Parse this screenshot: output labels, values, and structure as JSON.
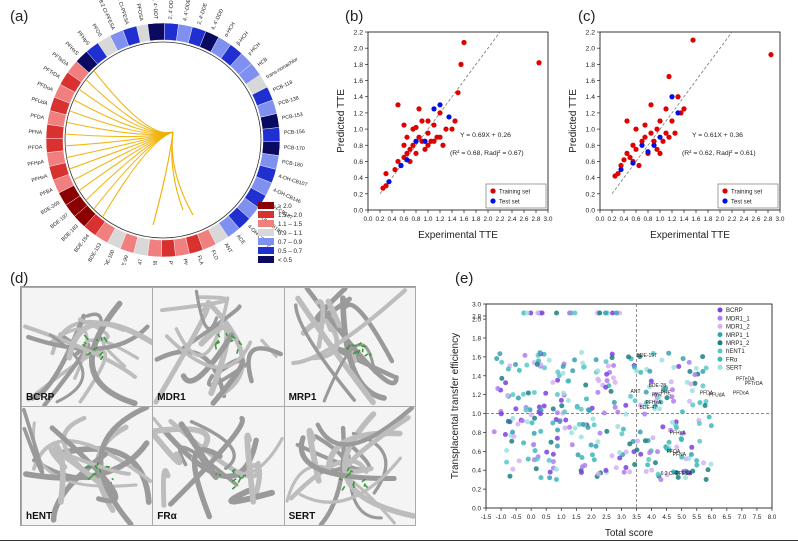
{
  "panels": {
    "a": "(a)",
    "b": "(b)",
    "c": "(c)",
    "d": "(d)",
    "e": "(e)"
  },
  "circle": {
    "labels": [
      "PFOSA",
      "6:2 Cl-PFESA",
      "8:2 Cl-PFESA",
      "PFOS",
      "PFHpS",
      "PFHxS",
      "PFTeDA",
      "PFTrDA",
      "PFDoA",
      "PFUdA",
      "PFDA",
      "PFNA",
      "PFOA",
      "PFHpA",
      "PFHxA",
      "PFBA",
      "BDE-209",
      "BDE-197",
      "BDE-183",
      "BDE-154",
      "BDE-153",
      "BDE-100",
      "BDE-99",
      "BDE-47",
      "BDE-28",
      "PYR",
      "PHE",
      "FLA",
      "FLO",
      "ANT",
      "ACE",
      "4-OH-CB172",
      "3-OH-CB187",
      "4-OH-CB187",
      "4-OH-CB146",
      "4-OH-CB107",
      "PCB-180",
      "PCB-170",
      "PCB-156",
      "PCB-153",
      "PCB-138",
      "PCB-118",
      "trans-nonachlor",
      "HCB",
      "γ-HCH",
      "β-HCH",
      "α-HCH",
      "4, 4'-DDD",
      "2, 4'-DDE",
      "4, 4'-DDE",
      "2, 4'-DDT",
      "4, 4'-DDT"
    ],
    "legend": [
      "≥ 2.0",
      "1.5 – 2.0",
      "1.1 – 1.5",
      "0.9 – 1.1",
      "0.7 – 0.9",
      "0.5 – 0.7",
      "< 0.5"
    ],
    "legend_colors": [
      "#8b0000",
      "#d93030",
      "#f08080",
      "#d8d8d8",
      "#8090f0",
      "#2030d0",
      "#0a0a60"
    ]
  },
  "chart_data": [
    {
      "type": "scatter",
      "panel": "b",
      "xlabel": "Experimental TTE",
      "ylabel": "Predicted TTE",
      "xlim": [
        0.0,
        3.0
      ],
      "ylim": [
        0.0,
        2.2
      ],
      "xticks": [
        "0.0",
        "0.2",
        "0.4",
        "0.6",
        "0.8",
        "1.0",
        "1.2",
        "1.4",
        "1.6",
        "1.8",
        "2.0",
        "2.2",
        "2.4",
        "2.6",
        "2.8",
        "3.0"
      ],
      "yticks": [
        "0.0",
        "0.2",
        "0.4",
        "0.6",
        "0.8",
        "1.0",
        "1.2",
        "1.4",
        "1.6",
        "1.8",
        "2.0",
        "2.2"
      ],
      "equation": "Y = 0.69X + 0.26",
      "stats": "(R² = 0.68, Radj² = 0.67)",
      "legend": [
        "Training set",
        "Test set"
      ],
      "training": [
        [
          0.25,
          0.27
        ],
        [
          0.3,
          0.3
        ],
        [
          0.3,
          0.45
        ],
        [
          0.45,
          0.5
        ],
        [
          0.5,
          0.6
        ],
        [
          0.55,
          0.55
        ],
        [
          0.6,
          0.8
        ],
        [
          0.6,
          0.65
        ],
        [
          0.65,
          0.7
        ],
        [
          0.7,
          0.75
        ],
        [
          0.7,
          0.6
        ],
        [
          0.75,
          0.8
        ],
        [
          0.8,
          0.7
        ],
        [
          0.85,
          0.9
        ],
        [
          0.9,
          0.85
        ],
        [
          0.95,
          0.75
        ],
        [
          1.0,
          0.8
        ],
        [
          1.0,
          0.95
        ],
        [
          1.05,
          0.85
        ],
        [
          1.1,
          0.85
        ],
        [
          1.15,
          0.9
        ],
        [
          1.2,
          0.9
        ],
        [
          1.25,
          0.8
        ],
        [
          0.5,
          1.3
        ],
        [
          0.6,
          1.05
        ],
        [
          0.75,
          1.0
        ],
        [
          0.85,
          1.25
        ],
        [
          0.9,
          1.1
        ],
        [
          1.0,
          1.1
        ],
        [
          1.1,
          1.05
        ],
        [
          1.2,
          1.2
        ],
        [
          1.3,
          1.0
        ],
        [
          1.4,
          1.0
        ],
        [
          1.5,
          1.45
        ],
        [
          1.55,
          1.8
        ],
        [
          1.6,
          2.07
        ],
        [
          2.85,
          1.82
        ],
        [
          1.45,
          1.1
        ],
        [
          0.65,
          0.9
        ],
        [
          0.8,
          1.02
        ]
      ],
      "test": [
        [
          0.35,
          0.35
        ],
        [
          0.55,
          0.55
        ],
        [
          0.65,
          0.62
        ],
        [
          0.8,
          0.85
        ],
        [
          0.95,
          0.85
        ],
        [
          1.1,
          1.25
        ],
        [
          1.2,
          1.3
        ],
        [
          1.35,
          1.15
        ]
      ]
    },
    {
      "type": "scatter",
      "panel": "c",
      "xlabel": "Experimental TTE",
      "ylabel": "Predicted TTE",
      "xlim": [
        0.0,
        3.0
      ],
      "ylim": [
        0.0,
        2.2
      ],
      "xticks": [
        "0.0",
        "0.2",
        "0.4",
        "0.6",
        "0.8",
        "1.0",
        "1.2",
        "1.4",
        "1.6",
        "1.8",
        "2.0",
        "2.2",
        "2.4",
        "2.6",
        "2.8",
        "3.0"
      ],
      "yticks": [
        "0.0",
        "0.2",
        "0.4",
        "0.6",
        "0.8",
        "1.0",
        "1.2",
        "1.4",
        "1.6",
        "1.8",
        "2.0",
        "2.2"
      ],
      "equation": "Y = 0.61X + 0.36",
      "stats": "(R² = 0.62, Radj² = 0.61)",
      "legend": [
        "Training set",
        "Test set"
      ],
      "training": [
        [
          0.25,
          0.42
        ],
        [
          0.3,
          0.45
        ],
        [
          0.35,
          0.55
        ],
        [
          0.4,
          0.62
        ],
        [
          0.45,
          0.7
        ],
        [
          0.5,
          0.65
        ],
        [
          0.55,
          0.8
        ],
        [
          0.6,
          0.75
        ],
        [
          0.65,
          0.55
        ],
        [
          0.7,
          0.85
        ],
        [
          0.75,
          0.9
        ],
        [
          0.8,
          0.7
        ],
        [
          0.85,
          0.95
        ],
        [
          0.9,
          0.85
        ],
        [
          0.95,
          0.75
        ],
        [
          1.0,
          0.7
        ],
        [
          1.05,
          0.85
        ],
        [
          1.1,
          0.95
        ],
        [
          1.15,
          0.9
        ],
        [
          1.2,
          1.1
        ],
        [
          1.25,
          0.95
        ],
        [
          0.45,
          1.1
        ],
        [
          0.6,
          1.0
        ],
        [
          0.75,
          1.05
        ],
        [
          0.85,
          1.3
        ],
        [
          1.0,
          1.1
        ],
        [
          1.1,
          1.25
        ],
        [
          1.15,
          1.65
        ],
        [
          1.3,
          1.4
        ],
        [
          1.35,
          1.2
        ],
        [
          1.4,
          1.25
        ],
        [
          1.55,
          2.1
        ],
        [
          2.85,
          1.92
        ],
        [
          0.55,
          0.6
        ],
        [
          0.95,
          1.0
        ]
      ],
      "test": [
        [
          0.35,
          0.5
        ],
        [
          0.55,
          0.58
        ],
        [
          0.7,
          0.8
        ],
        [
          0.8,
          0.72
        ],
        [
          0.9,
          0.8
        ],
        [
          1.0,
          0.9
        ],
        [
          1.2,
          1.4
        ],
        [
          1.3,
          1.2
        ]
      ]
    },
    {
      "type": "scatter",
      "panel": "e",
      "xlabel": "Total score",
      "ylabel": "Transplacental transfer efficiency",
      "xlim": [
        -1.5,
        8.0
      ],
      "ylim": [
        0.0,
        3.0
      ],
      "xticks": [
        "-1.5",
        "-1.0",
        "-0.5",
        "0.0",
        "0.5",
        "1.0",
        "1.5",
        "2.0",
        "2.5",
        "3.0",
        "3.5",
        "4.0",
        "4.5",
        "5.0",
        "5.5",
        "6.0",
        "6.5",
        "7.0",
        "7.5",
        "8.0"
      ],
      "yticks": [
        "0.0",
        "0.2",
        "0.4",
        "0.6",
        "0.8",
        "1.0",
        "1.2",
        "1.4",
        "1.6",
        "1.8",
        "2.0",
        "2.8",
        "3.0"
      ],
      "legend": [
        "BCRP",
        "MDR1_1",
        "MDR1_2",
        "MRP1_1",
        "MRP1_2",
        "hENT1",
        "FRα",
        "SERT"
      ],
      "colors": [
        "#7b3fe0",
        "#b07cf0",
        "#d4b0f5",
        "#3aa0b0",
        "#1a8080",
        "#5bc8c8",
        "#40b8b8",
        "#9ee0e0"
      ],
      "annotations": [
        "BDE-197",
        "PFTeDA",
        "PFTrDA",
        "PFDoA",
        "BDE-28",
        "ANT",
        "BDE-47",
        "PFHxA",
        "PFDA",
        "PFUdA",
        "PHE",
        "PYR",
        "PFHpA",
        "PFOA",
        "PFNA",
        "6:2 Cl-PFESA"
      ]
    }
  ],
  "proteins": [
    "BCRP",
    "MDR1",
    "MRP1",
    "hENT",
    "FRα",
    "SERT"
  ]
}
